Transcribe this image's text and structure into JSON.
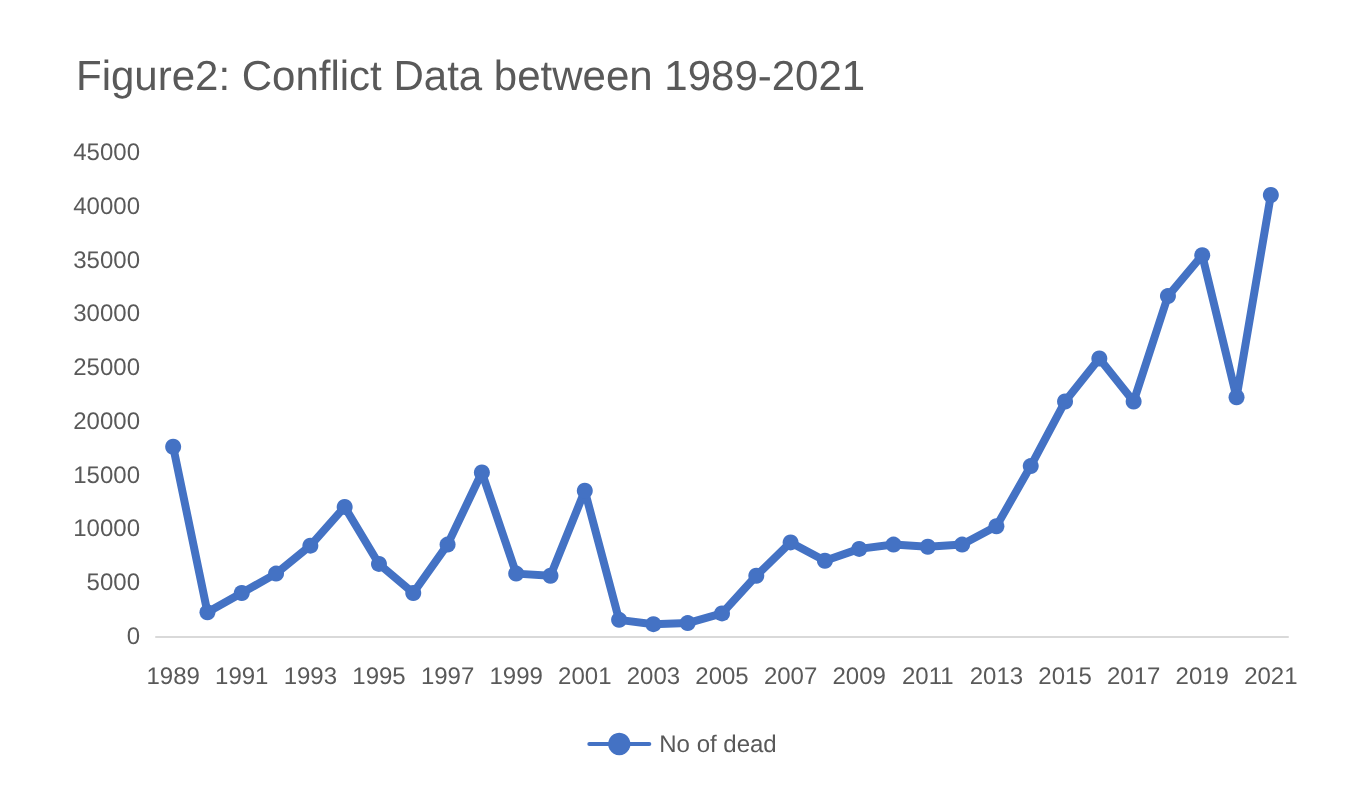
{
  "chart_data": {
    "type": "line",
    "title": "Figure2: Conflict Data between 1989-2021",
    "categories": [
      "1989",
      null,
      "1991",
      null,
      "1993",
      null,
      "1995",
      null,
      "1997",
      null,
      "1999",
      null,
      "2001",
      null,
      "2003",
      null,
      "2005",
      null,
      "2007",
      null,
      "2009",
      null,
      "2011",
      null,
      "2013",
      null,
      "2015",
      null,
      "2017",
      null,
      "2019",
      null,
      "2021"
    ],
    "series": [
      {
        "name": "No of dead",
        "color": "#4472c4",
        "values": [
          17600,
          2200,
          4000,
          5800,
          8400,
          12000,
          6700,
          4000,
          8500,
          15200,
          5800,
          5600,
          13500,
          1500,
          1100,
          1200,
          2100,
          5600,
          8700,
          7000,
          8100,
          8500,
          8300,
          8500,
          10200,
          15800,
          21800,
          25800,
          21800,
          31600,
          35400,
          22200,
          41000
        ]
      }
    ],
    "ylim": [
      0,
      45000
    ],
    "yticks": [
      0,
      5000,
      10000,
      15000,
      20000,
      25000,
      30000,
      35000,
      40000,
      45000
    ],
    "grid": false,
    "legend": "bottom",
    "marker": "circle",
    "line_style": "solid"
  }
}
